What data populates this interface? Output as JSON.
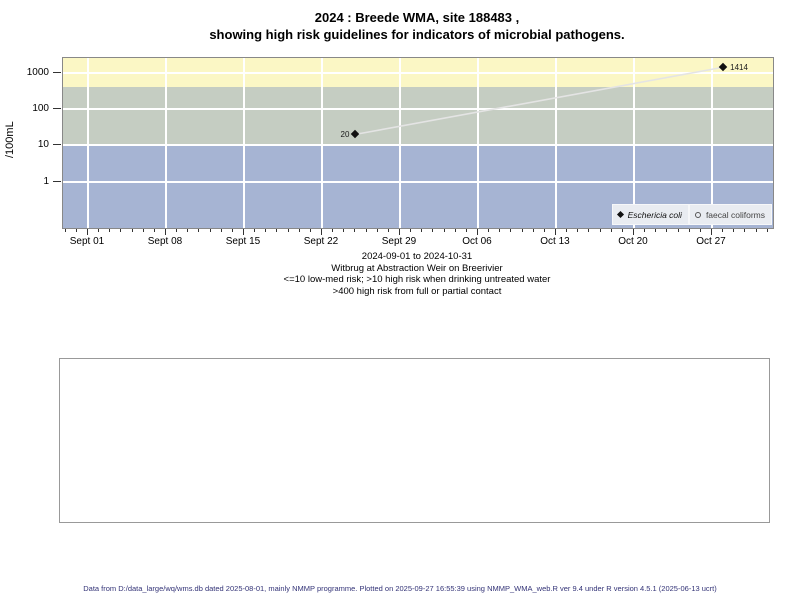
{
  "title": {
    "line1": "2024 : Breede WMA, site 188483 ,",
    "line2": "showing high risk guidelines for indicators of microbial pathogens."
  },
  "subtitle": {
    "lines": [
      "2024-09-01 to 2024-10-31",
      "Witbrug at Abstraction Weir on Breerivier",
      "<=10 low-med risk; >10 high risk when drinking untreated water",
      ">400 high risk from full or partial contact"
    ]
  },
  "footer": {
    "text": "Data from D:/data_large/wq/wms.db dated 2025-08-01, mainly NMMP programme. Plotted on 2025-09-27 16:55:39 using NMMP_WMA_web.R ver 9.4 under R version 4.5.1 (2025-06-13 ucrt)"
  },
  "legend": {
    "items": [
      {
        "label": "Eschericia coli",
        "marker": "filled-diamond"
      },
      {
        "label": "faecal coliforms",
        "marker": "open-circle"
      }
    ]
  },
  "colors": {
    "band_high_risk_contact": "#fbf7c5",
    "band_high_risk_drinking": "#c5cdc2",
    "band_low_med_risk": "#a6b4d3",
    "gridline": "#ffffff",
    "trend_line": "#e4e4e4",
    "data_point": "#111111",
    "footer_text": "#333377",
    "plot_border": "#888888"
  },
  "chart_data": {
    "type": "scatter",
    "title": "2024 : Breede WMA, site 188483 , showing high risk guidelines for indicators of microbial pathogens.",
    "xlabel": "",
    "ylabel": "/100mL",
    "y_scale": "log10",
    "y_ticks": [
      1000,
      100,
      10,
      1
    ],
    "x_tick_labels": [
      "Sept 01",
      "Sept 08",
      "Sept 15",
      "Sept 22",
      "Sept 29",
      "Oct 06",
      "Oct 13",
      "Oct 20",
      "Oct 27"
    ],
    "x_range": "2024-09-01 to 2024-10-31",
    "grid": "white major gridlines on",
    "legend_position": "bottom-right inside plot",
    "series": [
      {
        "name": "Eschericia coli",
        "marker": "filled-diamond",
        "points": [
          {
            "date": "2024-09-25",
            "day_offset": 24,
            "value": 20,
            "label": "20",
            "label_side": "left"
          },
          {
            "date": "2024-10-28",
            "day_offset": 57,
            "value": 1414,
            "label": "1414",
            "label_side": "right"
          }
        ]
      },
      {
        "name": "faecal coliforms",
        "marker": "open-circle",
        "points": []
      }
    ],
    "risk_bands": [
      {
        "label": ">400 high risk from full or partial contact",
        "min": 400,
        "max": null,
        "color": "#fbf7c5"
      },
      {
        "label": "10-400 high risk when drinking untreated water",
        "min": 10,
        "max": 400,
        "color": "#c5cdc2"
      },
      {
        "label": "<=10 low-med risk",
        "min": null,
        "max": 10,
        "color": "#a6b4d3"
      }
    ]
  }
}
